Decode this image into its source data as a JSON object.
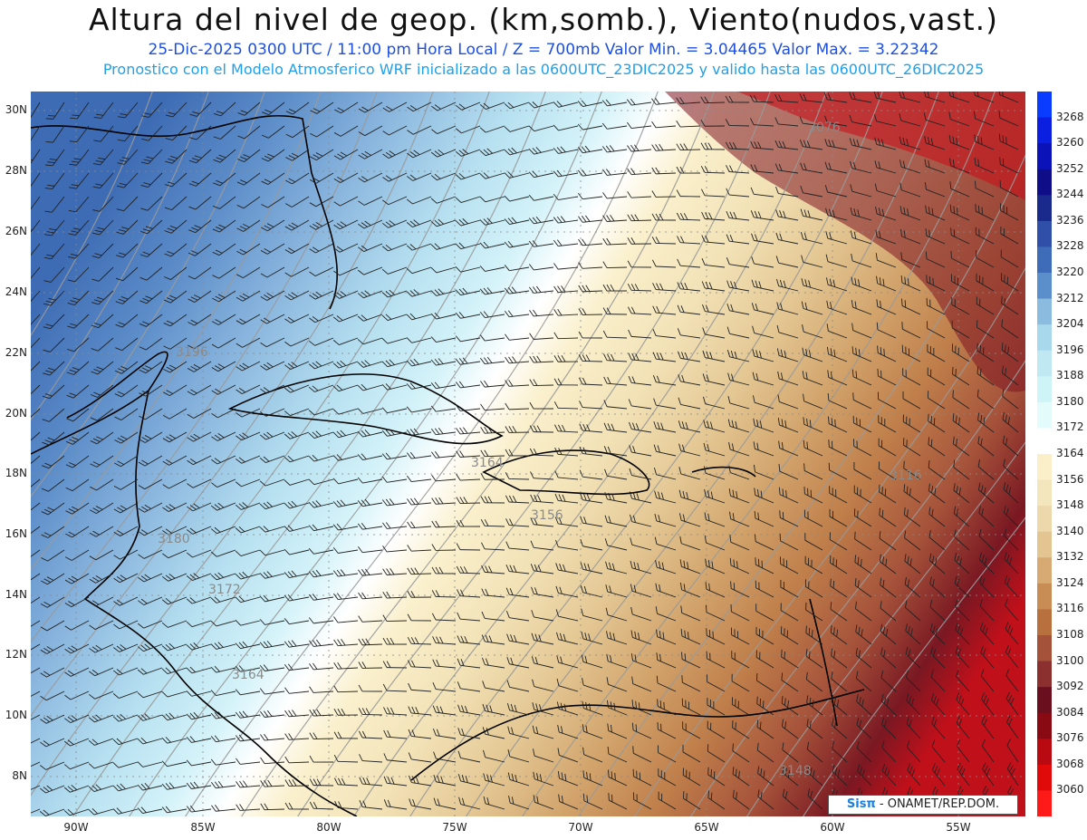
{
  "header": {
    "title": "Altura del nivel de geop. (km,somb.), Viento(nudos,vast.)",
    "subtitle": "25-Dic-2025  0300 UTC / 11:00 pm Hora Local / Z = 700mb   Valor Min. = 3.04465  Valor Max. = 3.22342",
    "info": "Pronostico con el Modelo Atmosferico WRF inicializado a las 0600UTC_23DIC2025 y valido hasta las  0600UTC_26DIC2025"
  },
  "axes": {
    "lat_labels": [
      "30N",
      "28N",
      "26N",
      "24N",
      "22N",
      "20N",
      "18N",
      "16N",
      "14N",
      "12N",
      "10N",
      "8N"
    ],
    "lon_labels": [
      "90W",
      "85W",
      "80W",
      "75W",
      "70W",
      "65W",
      "60W",
      "55W"
    ]
  },
  "contour_labels": [
    "3076",
    "3196",
    "3164",
    "3156",
    "3172",
    "3164",
    "3180",
    "3148",
    "3116"
  ],
  "colorbar": {
    "levels": [
      "3268",
      "3260",
      "3252",
      "3244",
      "3236",
      "3228",
      "3220",
      "3212",
      "3204",
      "3196",
      "3188",
      "3180",
      "3172",
      "3164",
      "3156",
      "3148",
      "3140",
      "3132",
      "3124",
      "3116",
      "3108",
      "3100",
      "3092",
      "3084",
      "3076",
      "3068",
      "3060"
    ],
    "colors": [
      "#0a3cff",
      "#0a1fe0",
      "#0a12b8",
      "#0f0e88",
      "#1a2a8c",
      "#2f4fa8",
      "#3f6cb8",
      "#5a8fcc",
      "#8cbbe0",
      "#a8d8ec",
      "#c0e8f2",
      "#cef4f8",
      "#e4fbfc",
      "#ffffff",
      "#faefc8",
      "#f4e6bc",
      "#ecd8aa",
      "#e2c590",
      "#d6aa72",
      "#c88d55",
      "#b8703f",
      "#a5523a",
      "#8c2f2f",
      "#6a0f1e",
      "#8a0a14",
      "#b80a10",
      "#e00a0a",
      "#ff1a1a"
    ]
  },
  "credit": {
    "brand": "Sisπ",
    "text": " - ONAMET/REP.DOM."
  }
}
